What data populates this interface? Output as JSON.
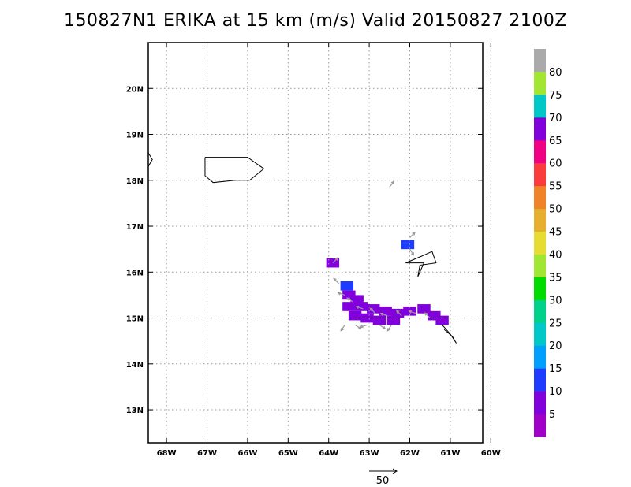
{
  "chart_data": {
    "type": "heatmap",
    "title": "150827N1 ERIKA at 15 km (m/s) Valid 20150827 2100Z",
    "x_ticks": [
      {
        "lon": -68,
        "label": "68W"
      },
      {
        "lon": -67,
        "label": "67W"
      },
      {
        "lon": -66,
        "label": "66W"
      },
      {
        "lon": -65,
        "label": "65W"
      },
      {
        "lon": -64,
        "label": "64W"
      },
      {
        "lon": -63,
        "label": "63W"
      },
      {
        "lon": -62,
        "label": "62W"
      },
      {
        "lon": -61,
        "label": "61W"
      },
      {
        "lon": -60,
        "label": "60W"
      }
    ],
    "y_ticks": [
      {
        "lat": 13,
        "label": "13N"
      },
      {
        "lat": 14,
        "label": "14N"
      },
      {
        "lat": 15,
        "label": "15N"
      },
      {
        "lat": 16,
        "label": "16N"
      },
      {
        "lat": 17,
        "label": "17N"
      },
      {
        "lat": 18,
        "label": "18N"
      },
      {
        "lat": 19,
        "label": "19N"
      },
      {
        "lat": 20,
        "label": "20N"
      }
    ],
    "xlim": [
      -68.45,
      -60.2
    ],
    "ylim": [
      12.28,
      21.0
    ],
    "grid": true,
    "colorbar": {
      "levels": [
        0,
        5,
        10,
        15,
        20,
        25,
        30,
        35,
        40,
        45,
        50,
        55,
        60,
        65,
        70,
        75,
        80,
        85
      ],
      "labels": [
        "5",
        "10",
        "15",
        "20",
        "25",
        "30",
        "35",
        "40",
        "45",
        "50",
        "55",
        "60",
        "65",
        "70",
        "75",
        "80"
      ],
      "colors": [
        "#a000c8",
        "#8200dc",
        "#1e3cff",
        "#00a0ff",
        "#00c8c8",
        "#00d28c",
        "#00dc00",
        "#a0e632",
        "#e6dc32",
        "#e6af2d",
        "#f08228",
        "#fa3c3c",
        "#f00082",
        "#8200dc",
        "#00c8c8",
        "#a0e632",
        "#aaaaaa"
      ]
    },
    "cells": [
      {
        "lon": -63.9,
        "lat": 16.2,
        "value": 7
      },
      {
        "lon": -62.05,
        "lat": 16.6,
        "value": 11
      },
      {
        "lon": -63.55,
        "lat": 15.7,
        "value": 11
      },
      {
        "lon": -63.5,
        "lat": 15.5,
        "value": 8
      },
      {
        "lon": -63.3,
        "lat": 15.4,
        "value": 6
      },
      {
        "lon": -63.5,
        "lat": 15.25,
        "value": 7
      },
      {
        "lon": -63.2,
        "lat": 15.25,
        "value": 8
      },
      {
        "lon": -62.9,
        "lat": 15.2,
        "value": 6
      },
      {
        "lon": -62.6,
        "lat": 15.15,
        "value": 7
      },
      {
        "lon": -62.3,
        "lat": 15.1,
        "value": 6
      },
      {
        "lon": -62.0,
        "lat": 15.15,
        "value": 7
      },
      {
        "lon": -61.65,
        "lat": 15.2,
        "value": 6
      },
      {
        "lon": -61.4,
        "lat": 15.05,
        "value": 7
      },
      {
        "lon": -63.35,
        "lat": 15.05,
        "value": 6
      },
      {
        "lon": -63.05,
        "lat": 15.0,
        "value": 7
      },
      {
        "lon": -62.75,
        "lat": 14.95,
        "value": 6
      },
      {
        "lon": -62.4,
        "lat": 14.95,
        "value": 7
      },
      {
        "lon": -61.2,
        "lat": 14.95,
        "value": 6
      }
    ],
    "vectors": [
      {
        "lon": -62.5,
        "lat": 17.85,
        "u": 3,
        "v": 4
      },
      {
        "lon": -62.0,
        "lat": 16.75,
        "u": 3,
        "v": 3
      },
      {
        "lon": -62.0,
        "lat": 16.5,
        "u": 2,
        "v": -3
      },
      {
        "lon": -63.9,
        "lat": 16.2,
        "u": 2,
        "v": 2
      },
      {
        "lon": -63.75,
        "lat": 15.75,
        "u": -2,
        "v": 2
      },
      {
        "lon": -63.6,
        "lat": 15.5,
        "u": -3,
        "v": 1
      },
      {
        "lon": -63.4,
        "lat": 15.35,
        "u": -3,
        "v": 2
      },
      {
        "lon": -63.15,
        "lat": 15.2,
        "u": -3,
        "v": 1
      },
      {
        "lon": -62.85,
        "lat": 15.1,
        "u": -2,
        "v": 2
      },
      {
        "lon": -62.55,
        "lat": 15.05,
        "u": -3,
        "v": 1
      },
      {
        "lon": -62.2,
        "lat": 15.05,
        "u": -2,
        "v": 2
      },
      {
        "lon": -61.85,
        "lat": 15.1,
        "u": -3,
        "v": 1
      },
      {
        "lon": -61.5,
        "lat": 15.0,
        "u": -2,
        "v": 2
      },
      {
        "lon": -63.6,
        "lat": 14.85,
        "u": -2,
        "v": -3
      },
      {
        "lon": -63.35,
        "lat": 14.85,
        "u": 3,
        "v": -2
      },
      {
        "lon": -63.05,
        "lat": 14.85,
        "u": -3,
        "v": -1
      },
      {
        "lon": -62.75,
        "lat": 14.85,
        "u": 3,
        "v": -2
      },
      {
        "lon": -62.45,
        "lat": 14.85,
        "u": -2,
        "v": -3
      }
    ],
    "coastlines": [
      [
        [
          -68.45,
          18.6
        ],
        [
          -68.35,
          18.45
        ],
        [
          -68.45,
          18.3
        ]
      ],
      [
        [
          -67.05,
          18.5
        ],
        [
          -66.0,
          18.5
        ],
        [
          -65.6,
          18.25
        ],
        [
          -65.95,
          18.0
        ],
        [
          -66.3,
          18.0
        ],
        [
          -66.85,
          17.95
        ],
        [
          -67.05,
          18.1
        ],
        [
          -67.05,
          18.5
        ]
      ],
      [
        [
          -62.1,
          16.2
        ],
        [
          -61.7,
          16.35
        ],
        [
          -61.45,
          16.45
        ],
        [
          -61.35,
          16.2
        ],
        [
          -61.75,
          16.15
        ],
        [
          -61.8,
          15.9
        ],
        [
          -61.65,
          16.2
        ],
        [
          -62.1,
          16.2
        ]
      ],
      [
        [
          -61.2,
          14.85
        ],
        [
          -61.0,
          14.65
        ],
        [
          -60.85,
          14.45
        ],
        [
          -60.95,
          14.6
        ],
        [
          -61.15,
          14.75
        ]
      ]
    ],
    "reference_vector": {
      "label": "50",
      "lon": -62.3,
      "lat": 12.28
    }
  }
}
